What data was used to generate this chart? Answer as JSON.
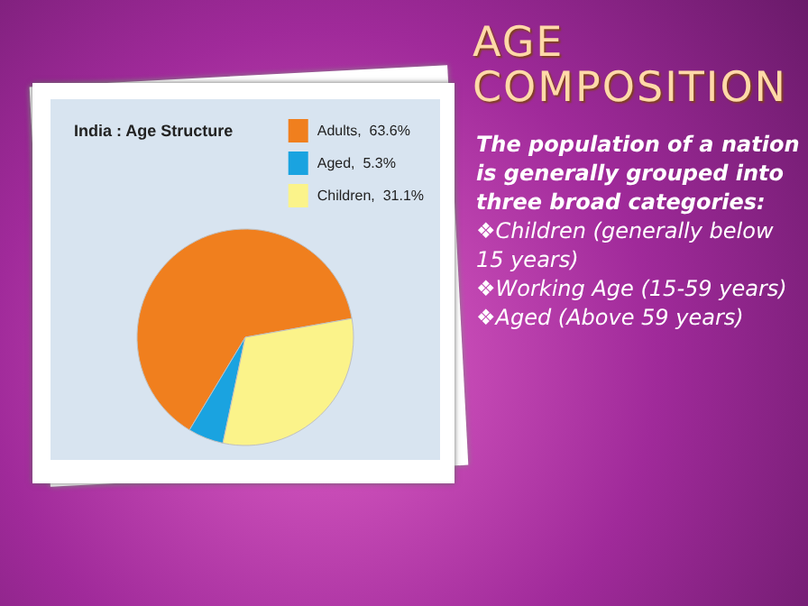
{
  "chart_data": {
    "type": "pie",
    "title": "India : Age Structure",
    "categories": [
      "Adults",
      "Aged",
      "Children"
    ],
    "values": [
      63.6,
      5.3,
      31.1
    ],
    "value_labels": [
      "63.6%",
      "5.3%",
      "31.1%"
    ],
    "colors": [
      "#f07f1e",
      "#1aa3e0",
      "#fbf38a"
    ],
    "legend": "top right",
    "annotations": [
      "AGE COMPOSITION",
      "The population of a nation is generally grouped into three broad categories:",
      "❖Children (generally below 15 years)",
      "❖Working Age (15-59 years)",
      "❖Aged (Above 59 years)"
    ]
  }
}
